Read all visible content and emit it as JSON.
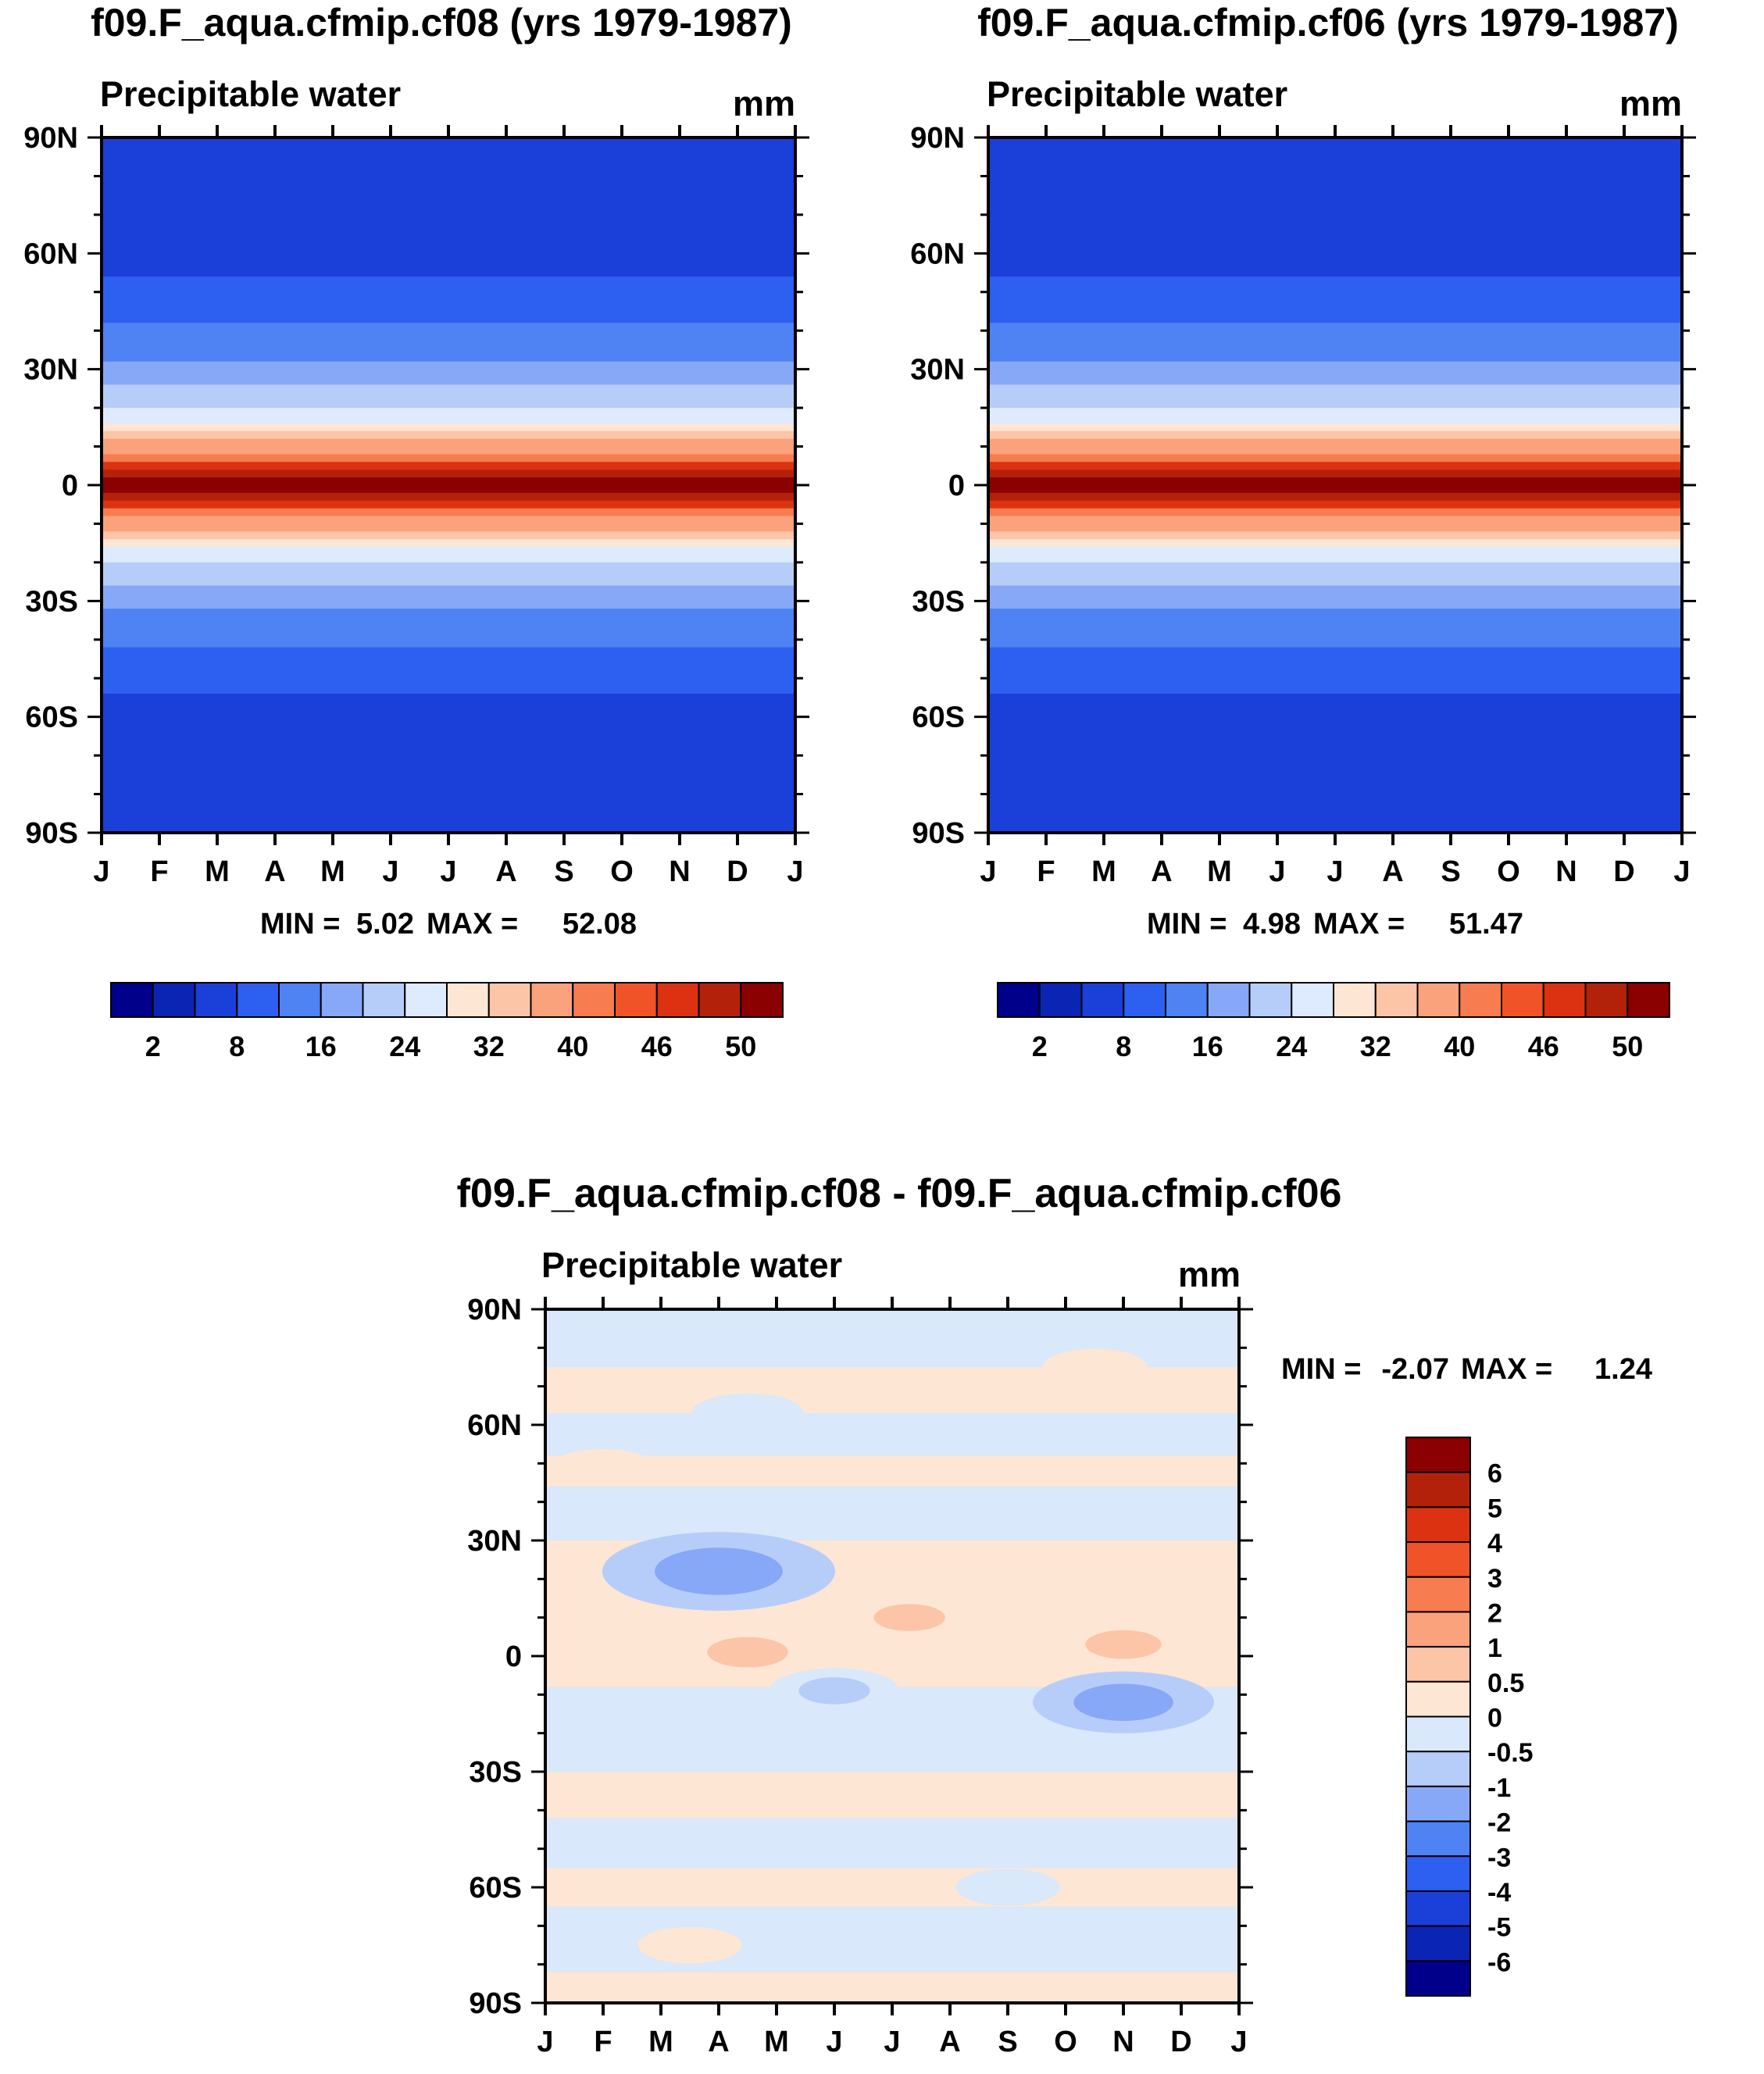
{
  "chart_data": [
    {
      "type": "heatmap",
      "title": "f09.F_aqua.cfmip.cf08 (yrs 1979-1987)",
      "variable": "Precipitable water",
      "units": "mm",
      "x_ticks": [
        "J",
        "F",
        "M",
        "A",
        "M",
        "J",
        "J",
        "A",
        "S",
        "O",
        "N",
        "D",
        "J"
      ],
      "y_ticks": [
        "90N",
        "60N",
        "30N",
        "0",
        "30S",
        "60S",
        "90S"
      ],
      "ylim": [
        -90,
        90
      ],
      "stats": {
        "min_label": "MIN =",
        "min": "5.02",
        "max_label": "MAX =",
        "max": "52.08"
      },
      "field": {
        "latitudes": [
          90,
          60,
          50,
          40,
          30,
          25,
          20,
          15,
          10,
          5,
          0,
          -5,
          -10,
          -15,
          -20,
          -25,
          -30,
          -40,
          -50,
          -60,
          -90
        ],
        "values": [
          6,
          6,
          9,
          13,
          17,
          20,
          24,
          30,
          38,
          46,
          52,
          46,
          38,
          30,
          24,
          20,
          17,
          13,
          9,
          6,
          6
        ]
      },
      "colorbar": {
        "labels": [
          "2",
          "8",
          "16",
          "24",
          "32",
          "40",
          "46",
          "50"
        ]
      }
    },
    {
      "type": "heatmap",
      "title": "f09.F_aqua.cfmip.cf06 (yrs 1979-1987)",
      "variable": "Precipitable water",
      "units": "mm",
      "x_ticks": [
        "J",
        "F",
        "M",
        "A",
        "M",
        "J",
        "J",
        "A",
        "S",
        "O",
        "N",
        "D",
        "J"
      ],
      "y_ticks": [
        "90N",
        "60N",
        "30N",
        "0",
        "30S",
        "60S",
        "90S"
      ],
      "ylim": [
        -90,
        90
      ],
      "stats": {
        "min_label": "MIN =",
        "min": "4.98",
        "max_label": "MAX =",
        "max": "51.47"
      },
      "field": {
        "latitudes": [
          90,
          60,
          50,
          40,
          30,
          25,
          20,
          15,
          10,
          5,
          0,
          -5,
          -10,
          -15,
          -20,
          -25,
          -30,
          -40,
          -50,
          -60,
          -90
        ],
        "values": [
          6,
          6,
          9,
          13,
          17,
          20,
          24,
          30,
          38,
          46,
          51,
          46,
          38,
          30,
          24,
          20,
          17,
          13,
          9,
          6,
          6
        ]
      },
      "colorbar": {
        "labels": [
          "2",
          "8",
          "16",
          "24",
          "32",
          "40",
          "46",
          "50"
        ]
      }
    },
    {
      "type": "heatmap",
      "title": "f09.F_aqua.cfmip.cf08 - f09.F_aqua.cfmip.cf06",
      "variable": "Precipitable water",
      "units": "mm",
      "x_ticks": [
        "J",
        "F",
        "M",
        "A",
        "M",
        "J",
        "J",
        "A",
        "S",
        "O",
        "N",
        "D",
        "J"
      ],
      "y_ticks": [
        "90N",
        "60N",
        "30N",
        "0",
        "30S",
        "60S",
        "90S"
      ],
      "ylim": [
        -90,
        90
      ],
      "stats": {
        "min_label": "MIN =",
        "min": "-2.07",
        "max_label": "MAX =",
        "max": "1.24"
      },
      "anomalies": [
        {
          "month": 3.0,
          "lat": 22,
          "value": -1.8
        },
        {
          "month": 3.5,
          "lat": 1,
          "value": 0.8
        },
        {
          "month": 6.3,
          "lat": 10,
          "value": 0.6
        },
        {
          "month": 10.0,
          "lat": 3,
          "value": 0.7
        },
        {
          "month": 10.0,
          "lat": -12,
          "value": -1.2
        },
        {
          "month": 5.0,
          "lat": -9,
          "value": -0.6
        },
        {
          "month": 1.5,
          "lat": -22,
          "value": -0.5
        },
        {
          "month": 3.5,
          "lat": 63,
          "value": -0.4
        },
        {
          "month": 9.5,
          "lat": 75,
          "value": 0.3
        },
        {
          "month": 1.0,
          "lat": 49,
          "value": 0.3
        },
        {
          "month": 8.0,
          "lat": -60,
          "value": -0.3
        },
        {
          "month": 2.5,
          "lat": -75,
          "value": 0.3
        }
      ],
      "colorbar": {
        "labels": [
          "6",
          "5",
          "4",
          "3",
          "2",
          "1",
          "0.5",
          "0",
          "-0.5",
          "-1",
          "-2",
          "-3",
          "-4",
          "-5",
          "-6"
        ]
      }
    }
  ],
  "colors": {
    "full_field_levels": [
      "#00008b",
      "#0a24b4",
      "#1b3fd9",
      "#2d5ff0",
      "#4f82f2",
      "#86a8f7",
      "#b6cdfa",
      "#deeafd",
      "#fde6d4",
      "#fcc5a7",
      "#f9a27b",
      "#f77c50",
      "#f15328",
      "#dc3211",
      "#b4210a",
      "#8b0000"
    ],
    "diff_levels": [
      "#8b0000",
      "#b4210a",
      "#dc3211",
      "#f15328",
      "#f77c50",
      "#f9a27b",
      "#fcc5a7",
      "#fde6d4",
      "#d9e8fa",
      "#b6cdfa",
      "#86a8f7",
      "#4f82f2",
      "#2d5ff0",
      "#1b3fd9",
      "#0a24b4",
      "#00008b"
    ]
  }
}
